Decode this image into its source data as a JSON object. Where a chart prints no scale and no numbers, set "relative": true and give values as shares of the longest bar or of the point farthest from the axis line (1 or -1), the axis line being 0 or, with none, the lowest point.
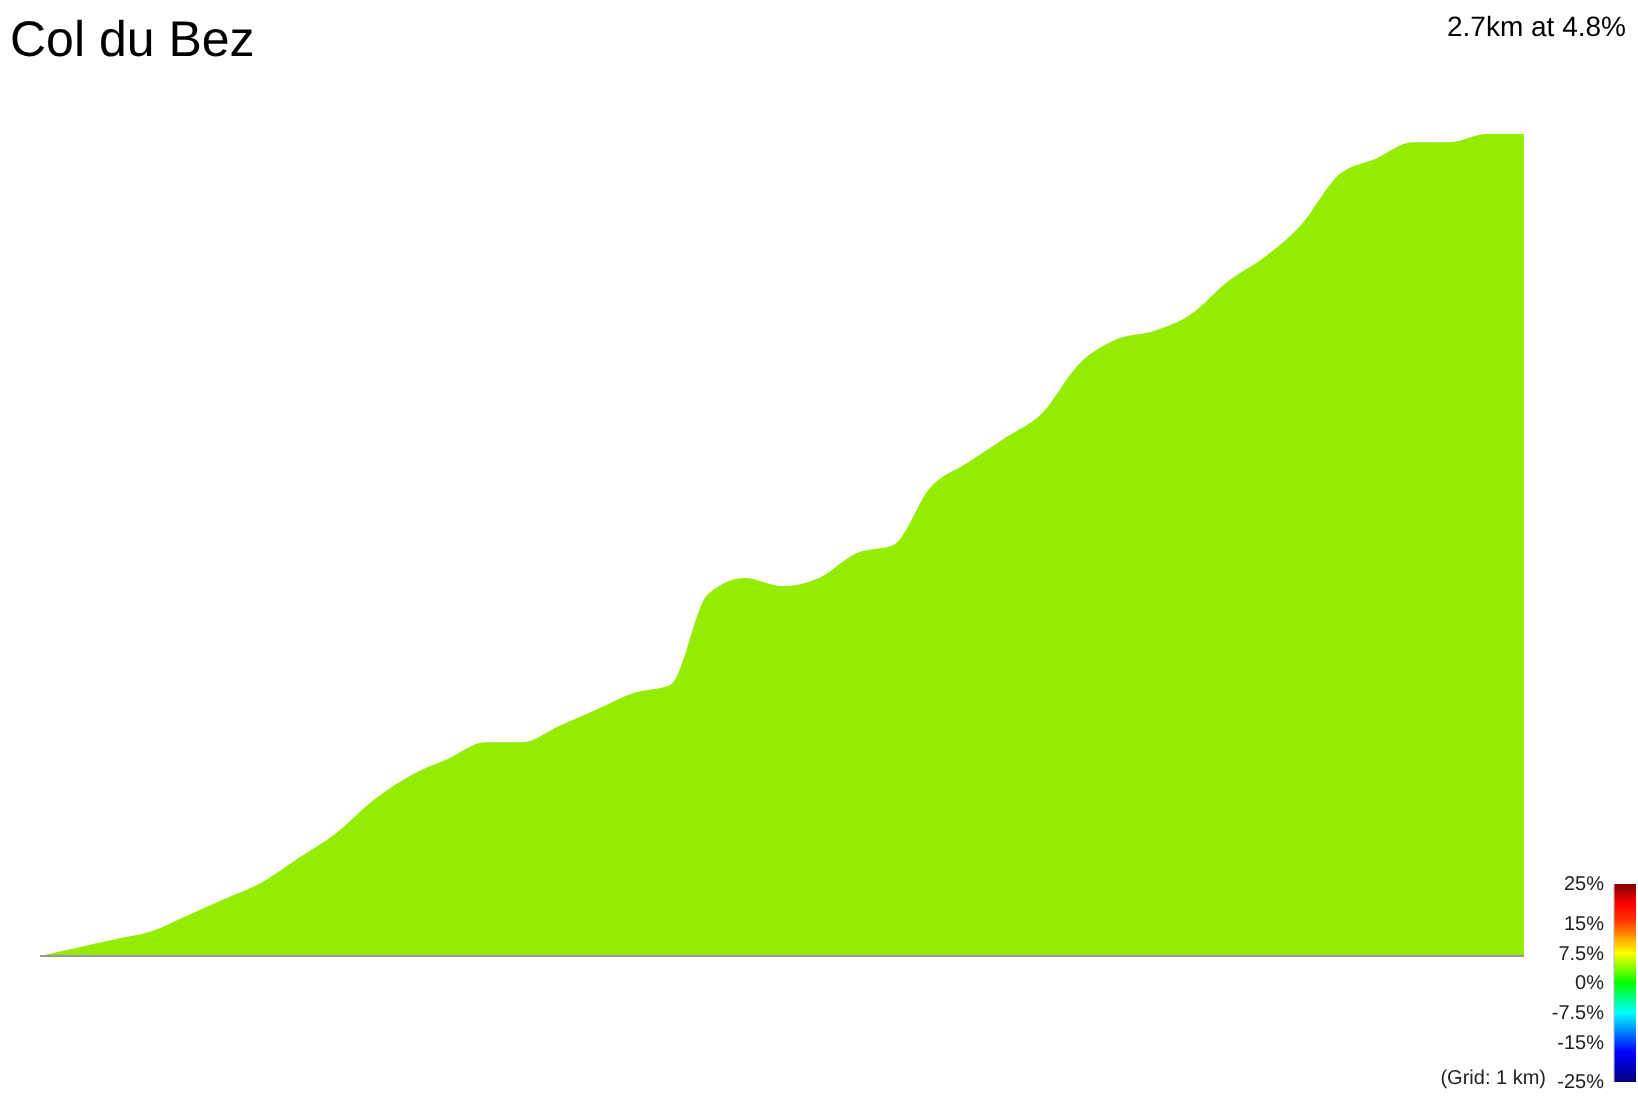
{
  "chart_data": {
    "type": "area",
    "title": "Col du Bez",
    "subtitle": "2.7km at 4.8%",
    "relative": true,
    "categories": [
      null,
      null,
      null,
      null,
      null,
      null,
      null,
      null,
      null,
      null,
      null,
      null,
      null,
      null,
      null,
      null,
      null,
      null,
      null,
      null,
      null,
      null,
      null,
      null,
      null,
      null,
      null,
      null,
      null,
      null,
      null,
      null,
      null,
      null,
      null,
      null,
      null,
      null,
      null,
      null,
      null
    ],
    "values": [
      0,
      0.01,
      0.02,
      0.03,
      0.05,
      0.07,
      0.09,
      0.12,
      0.15,
      0.19,
      0.22,
      0.24,
      0.26,
      0.26,
      0.28,
      0.3,
      0.32,
      0.33,
      0.44,
      0.46,
      0.45,
      0.46,
      0.49,
      0.5,
      0.57,
      0.6,
      0.63,
      0.66,
      0.72,
      0.75,
      0.76,
      0.78,
      0.82,
      0.85,
      0.89,
      0.95,
      0.97,
      0.99,
      0.99,
      1,
      1
    ],
    "color": "#96ec00",
    "clim": [
      -25,
      25
    ],
    "cticks": [
      {
        "value": 25,
        "label": "25%"
      },
      {
        "value": 15,
        "label": "15%"
      },
      {
        "value": 7.5,
        "label": "7.5%"
      },
      {
        "value": 0,
        "label": "0%"
      },
      {
        "value": -7.5,
        "label": "-7.5%"
      },
      {
        "value": -15,
        "label": "-15%"
      },
      {
        "value": -25,
        "label": "-25%"
      }
    ],
    "annotations": [
      "(Grid: 1 km)"
    ]
  }
}
